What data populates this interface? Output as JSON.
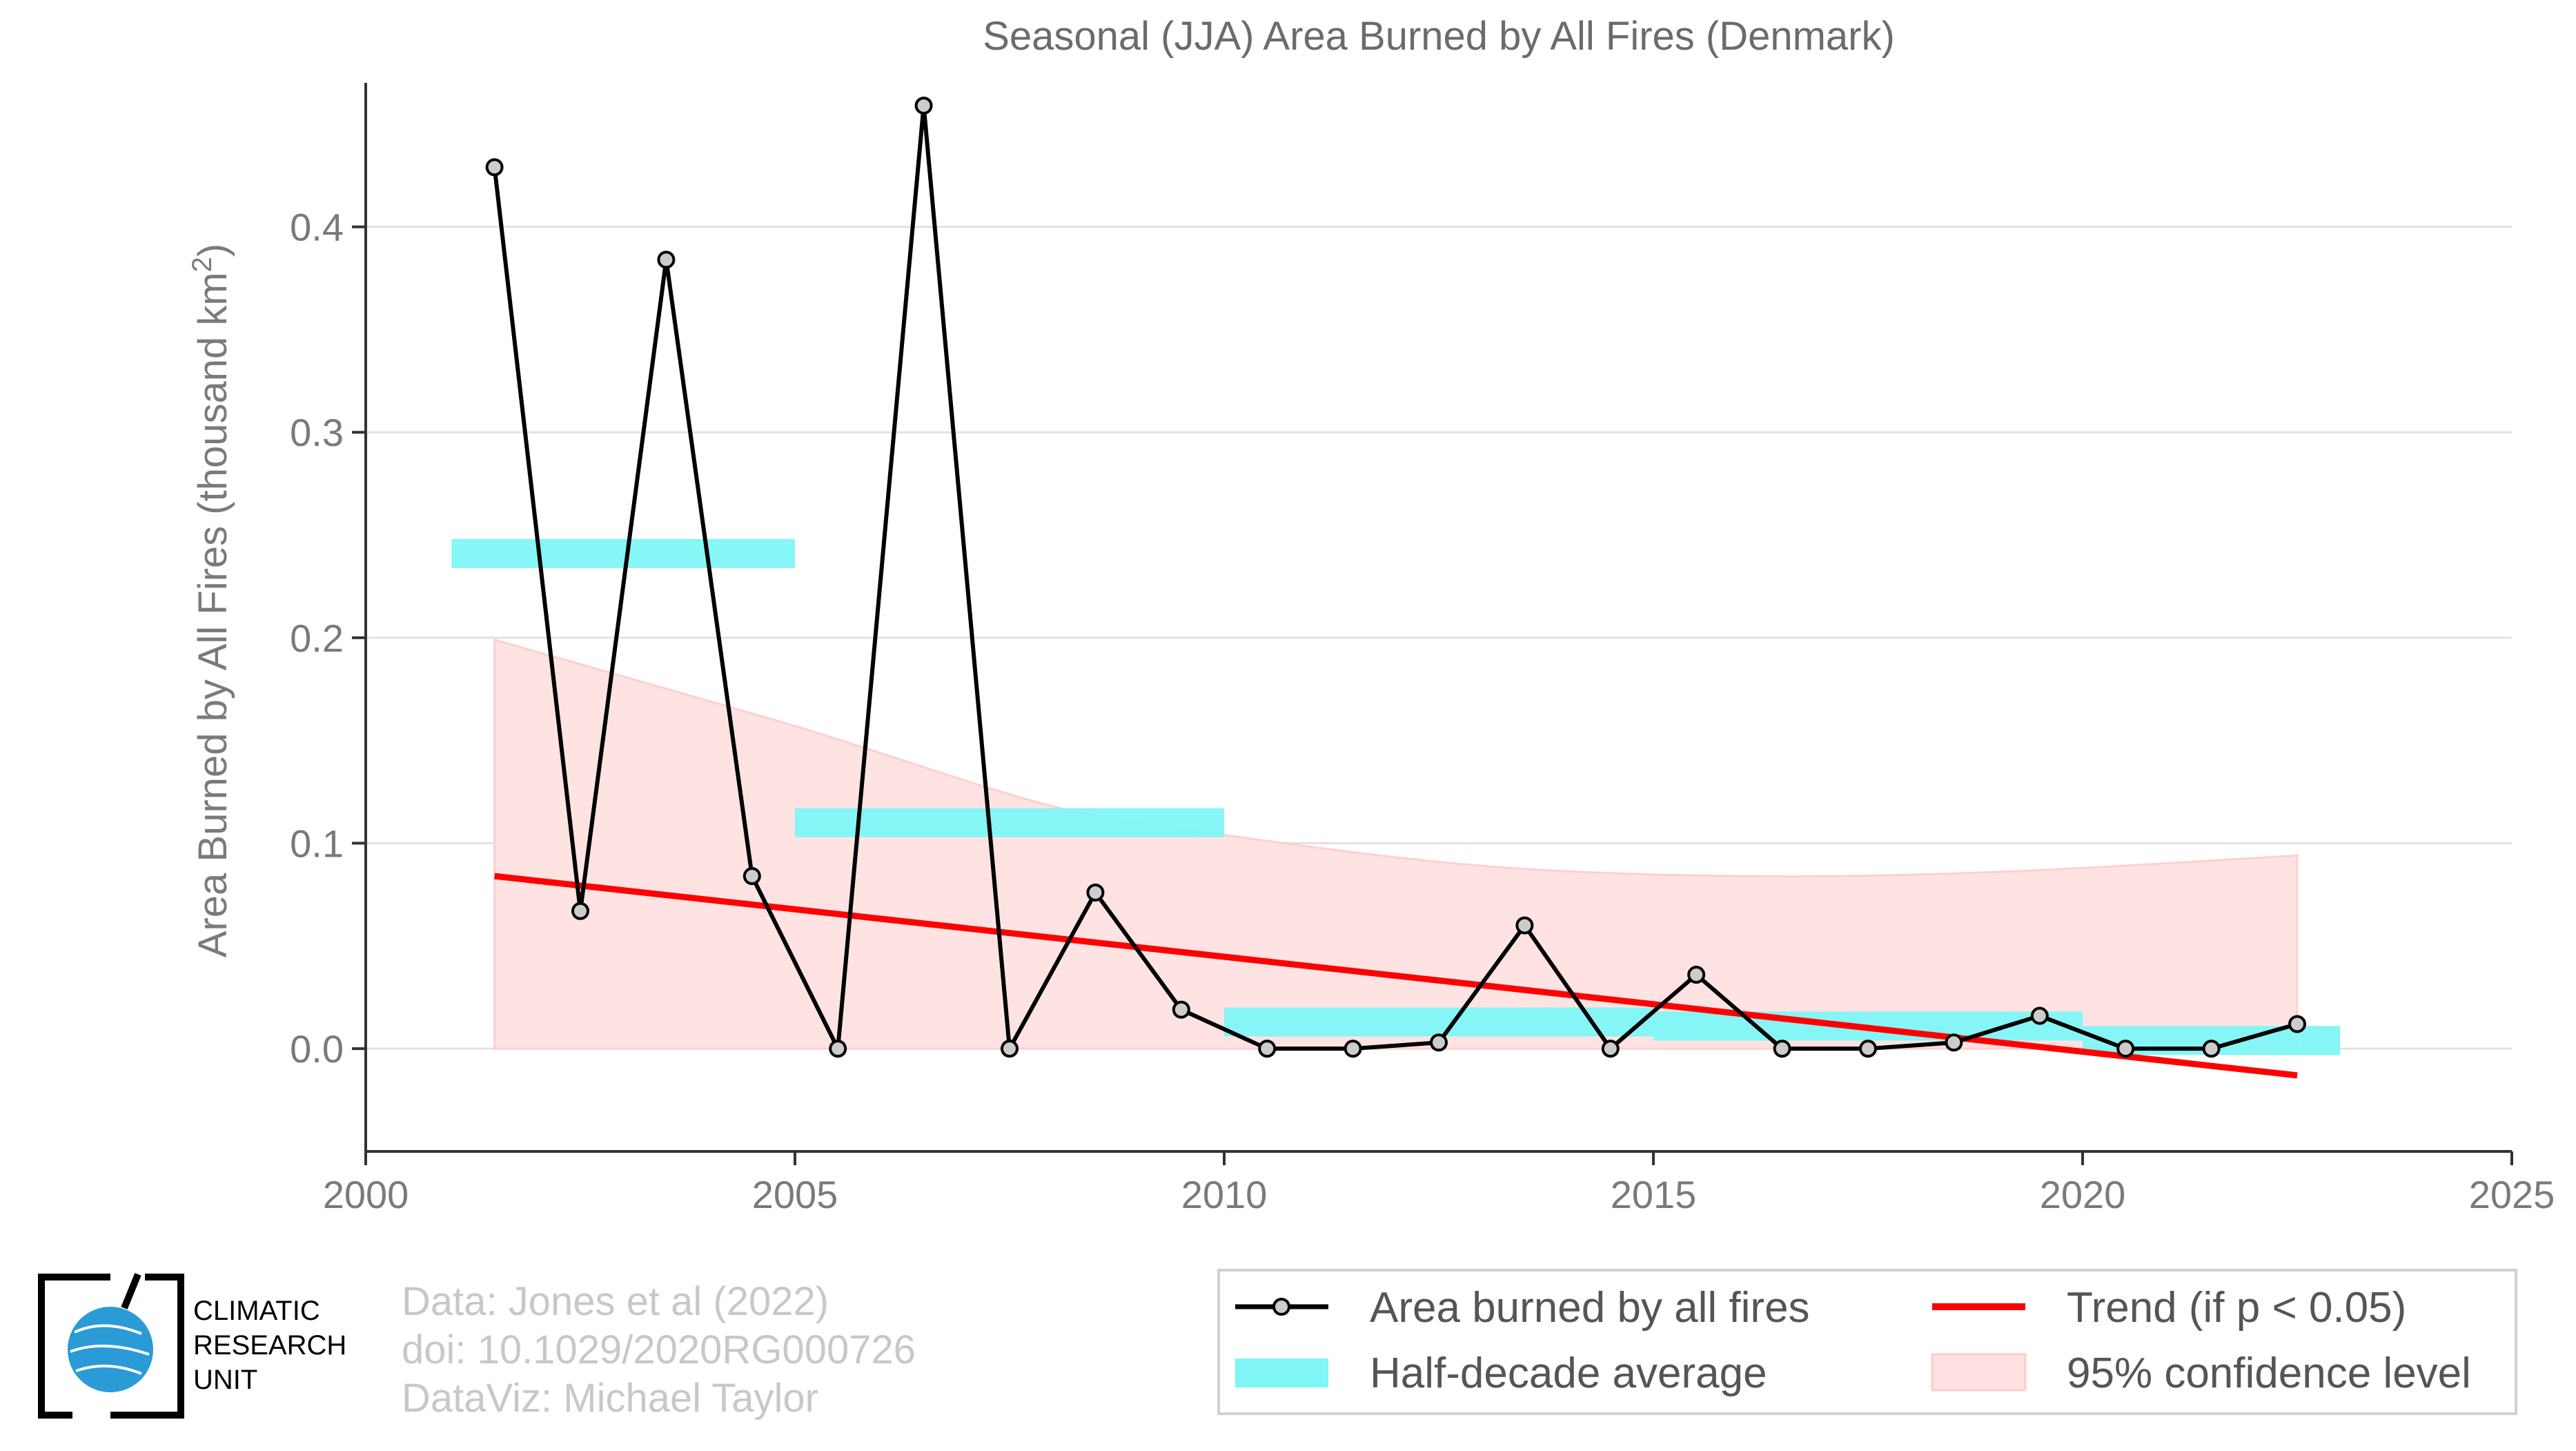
{
  "chart_data": {
    "type": "line",
    "title": "Seasonal (JJA) Area Burned by All Fires (Denmark)",
    "xlabel": "",
    "ylabel_main": "Area Burned by All Fires (thousand km",
    "ylabel_sup": "2",
    "ylabel_close": ")",
    "xlim": [
      2000,
      2025
    ],
    "ylim": [
      -0.05,
      0.46
    ],
    "x_ticks": [
      2000,
      2005,
      2010,
      2015,
      2020,
      2025
    ],
    "x_tick_labels": [
      "2000",
      "2005",
      "2010",
      "2015",
      "2020",
      "2025"
    ],
    "y_ticks": [
      0.0,
      0.1,
      0.2,
      0.3,
      0.4
    ],
    "y_tick_labels": [
      "0.0",
      "0.1",
      "0.2",
      "0.3",
      "0.4"
    ],
    "grid": "horizontal",
    "legend_position": "bottom-right",
    "series": [
      {
        "name": "Area burned by all fires",
        "color": "#000000",
        "x": [
          2001.5,
          2002.5,
          2003.5,
          2004.5,
          2005.5,
          2006.5,
          2007.5,
          2008.5,
          2009.5,
          2010.5,
          2011.5,
          2012.5,
          2013.5,
          2014.5,
          2015.5,
          2016.5,
          2017.5,
          2018.5,
          2019.5,
          2020.5,
          2021.5,
          2022.5
        ],
        "y": [
          0.429,
          0.067,
          0.384,
          0.084,
          0.0,
          0.459,
          0.0,
          0.076,
          0.019,
          0.0,
          0.0,
          0.003,
          0.06,
          0.0,
          0.036,
          0.0,
          0.0,
          0.003,
          0.016,
          0.0,
          0.0,
          0.012
        ]
      }
    ],
    "half_decade_average": {
      "name": "Half-decade average",
      "color": "#7ff5f5",
      "segments": [
        {
          "x_start": 2001.0,
          "x_end": 2005.0,
          "y": 0.241
        },
        {
          "x_start": 2005.0,
          "x_end": 2010.0,
          "y": 0.11
        },
        {
          "x_start": 2010.0,
          "x_end": 2015.0,
          "y": 0.013
        },
        {
          "x_start": 2015.0,
          "x_end": 2020.0,
          "y": 0.011
        },
        {
          "x_start": 2020.0,
          "x_end": 2023.0,
          "y": 0.004
        }
      ]
    },
    "trend": {
      "name": "Trend (if p < 0.05)",
      "color": "#ff0000",
      "x": [
        2001.5,
        2022.5
      ],
      "y": [
        0.084,
        -0.013
      ]
    },
    "confidence_band": {
      "name": "95% confidence level",
      "color": "#ffe1e1",
      "x": [
        2001.5,
        2005,
        2008,
        2010,
        2013,
        2016,
        2019,
        2022.5
      ],
      "upper": [
        0.199,
        0.157,
        0.118,
        0.104,
        0.089,
        0.084,
        0.086,
        0.094
      ],
      "lower": [
        0.0,
        0.0,
        0.0,
        0.0,
        0.0,
        0.0,
        0.0,
        0.0
      ]
    }
  },
  "credits": {
    "line1": "Data: Jones et al (2022)",
    "line2": "doi: 10.1029/2020RG000726",
    "line3": "DataViz: Michael Taylor"
  },
  "logo": {
    "line1": "CLIMATIC",
    "line2": "RESEARCH",
    "line3": "UNIT"
  }
}
